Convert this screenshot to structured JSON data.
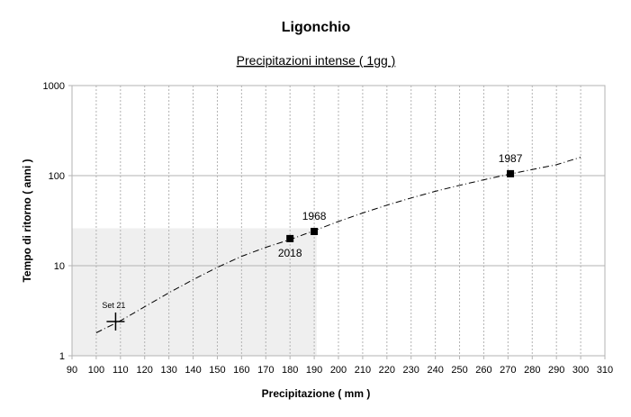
{
  "chart_data": {
    "type": "scatter",
    "title": "Ligonchio",
    "subtitle": "Precipitazioni intense ( 1gg )",
    "xlabel": "Precipitazione ( mm )",
    "ylabel": "Tempo di ritorno ( anni )",
    "xlim": [
      90,
      310
    ],
    "x_ticks": [
      90,
      100,
      110,
      120,
      130,
      140,
      150,
      160,
      170,
      180,
      190,
      200,
      210,
      220,
      230,
      240,
      250,
      260,
      270,
      280,
      290,
      300,
      310
    ],
    "ylim": [
      1,
      1000
    ],
    "y_scale": "log",
    "y_ticks": [
      1,
      10,
      100,
      1000
    ],
    "grid": {
      "x": "dotted",
      "y": "solid"
    },
    "shaded_region": {
      "x": [
        90,
        191
      ],
      "y": [
        1,
        26
      ]
    },
    "curve": {
      "style": "dash-dot",
      "x": [
        100,
        110,
        120,
        130,
        140,
        150,
        160,
        170,
        180,
        190,
        200,
        210,
        220,
        230,
        240,
        250,
        260,
        270,
        280,
        290,
        300
      ],
      "y": [
        1.8,
        2.45,
        3.5,
        5.0,
        7.0,
        9.6,
        12.7,
        16.0,
        19.5,
        24.5,
        31.0,
        38.5,
        47.0,
        56.5,
        67.0,
        78.0,
        90.0,
        103.0,
        117.0,
        132.0,
        160.0
      ]
    },
    "points": [
      {
        "label": "2018",
        "x": 180,
        "y": 20,
        "label_pos": "below"
      },
      {
        "label": "1968",
        "x": 190,
        "y": 24,
        "label_pos": "above"
      },
      {
        "label": "1987",
        "x": 271,
        "y": 105,
        "label_pos": "above"
      }
    ],
    "annotation": {
      "label": "Set 21",
      "x": 108,
      "y": 2.4,
      "marker": "cross"
    }
  }
}
